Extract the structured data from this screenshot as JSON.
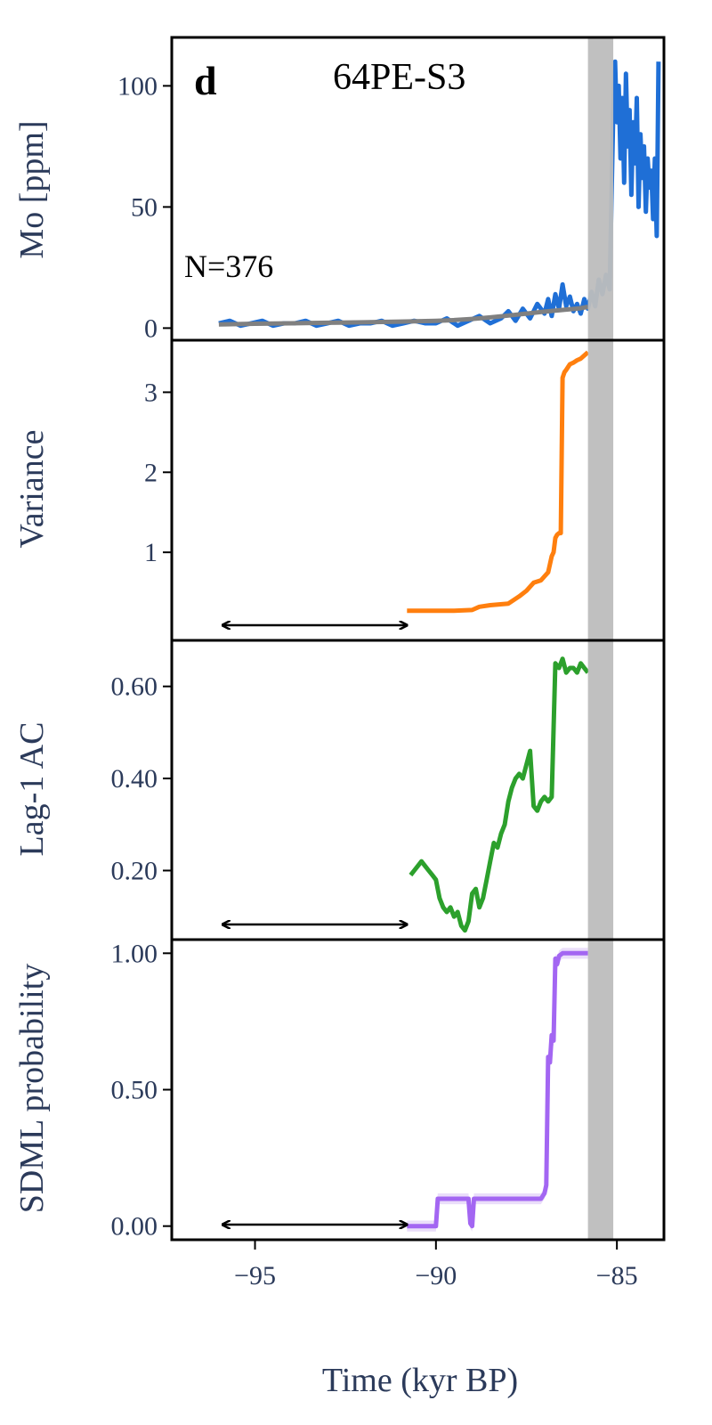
{
  "chart_data": {
    "type": "line",
    "panel_letter": "d",
    "title": "64PE-S3",
    "annotation": "N=376",
    "xlabel": "Time (kyr BP)",
    "xlim": [
      -97.3,
      -83.7
    ],
    "xticks": [
      -95,
      -90,
      -85
    ],
    "x_tick_labels": [
      "−95",
      "−90",
      "−85"
    ],
    "highlight_band": {
      "x_start": -85.8,
      "x_end": -85.1,
      "color": "#bdbdbd"
    },
    "window_arrow": {
      "x_start": -95.9,
      "x_end": -90.8
    },
    "panels": [
      {
        "ylabel": "Mo [ppm]",
        "ylim": [
          -5,
          120
        ],
        "yticks": [
          0,
          50,
          100
        ],
        "y_tick_labels": [
          "0",
          "50",
          "100"
        ],
        "series": [
          {
            "color": "#1f6fd6",
            "x": [
              -96.0,
              -95.7,
              -95.4,
              -95.1,
              -94.8,
              -94.5,
              -94.2,
              -93.9,
              -93.6,
              -93.3,
              -93.0,
              -92.7,
              -92.4,
              -92.1,
              -91.8,
              -91.5,
              -91.2,
              -90.9,
              -90.6,
              -90.3,
              -90.0,
              -89.7,
              -89.4,
              -89.1,
              -88.8,
              -88.5,
              -88.2,
              -88.0,
              -87.8,
              -87.6,
              -87.4,
              -87.2,
              -87.0,
              -86.9,
              -86.8,
              -86.7,
              -86.6,
              -86.5,
              -86.4,
              -86.3,
              -86.2,
              -86.1,
              -86.0,
              -85.9,
              -85.8,
              -85.7,
              -85.6,
              -85.5,
              -85.4,
              -85.3,
              -85.2,
              -85.1,
              -85.05,
              -85.0,
              -84.95,
              -84.9,
              -84.85,
              -84.8,
              -84.75,
              -84.7,
              -84.65,
              -84.6,
              -84.55,
              -84.5,
              -84.45,
              -84.4,
              -84.35,
              -84.3,
              -84.25,
              -84.2,
              -84.15,
              -84.1,
              -84.05,
              -84.0,
              -83.95,
              -83.9,
              -83.85
            ],
            "y": [
              2,
              3,
              1,
              2,
              3,
              1,
              2,
              2,
              3,
              1,
              2,
              3,
              1,
              2,
              2,
              3,
              1,
              2,
              3,
              2,
              2,
              4,
              1,
              3,
              5,
              2,
              4,
              7,
              3,
              8,
              4,
              10,
              6,
              12,
              5,
              14,
              8,
              18,
              9,
              13,
              7,
              10,
              6,
              12,
              8,
              15,
              9,
              20,
              14,
              22,
              16,
              90,
              110,
              85,
              100,
              70,
              95,
              60,
              105,
              75,
              90,
              55,
              85,
              68,
              95,
              50,
              80,
              62,
              75,
              48,
              70,
              58,
              65,
              45,
              70,
              38,
              110
            ]
          },
          {
            "color": "#808080",
            "x": [
              -96.0,
              -95.0,
              -94.0,
              -93.0,
              -92.0,
              -91.0,
              -90.0,
              -89.5,
              -89.0,
              -88.5,
              -88.0,
              -87.5,
              -87.0,
              -86.5,
              -86.0,
              -85.8
            ],
            "y": [
              1.5,
              1.8,
              2.0,
              2.2,
              2.4,
              2.7,
              3.0,
              3.3,
              3.8,
              4.4,
              5.2,
              6.0,
              6.8,
              7.5,
              8.2,
              8.8
            ]
          }
        ]
      },
      {
        "ylabel": "Variance",
        "ylim": [
          -0.1,
          3.65
        ],
        "yticks": [
          1,
          2,
          3
        ],
        "y_tick_labels": [
          "1",
          "2",
          "3"
        ],
        "series": [
          {
            "color": "#ff7f0e",
            "x": [
              -90.8,
              -90.0,
              -89.5,
              -89.0,
              -88.8,
              -88.5,
              -88.0,
              -87.7,
              -87.5,
              -87.3,
              -87.1,
              -87.0,
              -86.9,
              -86.85,
              -86.8,
              -86.75,
              -86.7,
              -86.65,
              -86.6,
              -86.55,
              -86.5,
              -86.45,
              -86.4,
              -86.3,
              -86.2,
              -86.1,
              -86.0,
              -85.9,
              -85.8
            ],
            "y": [
              0.27,
              0.27,
              0.27,
              0.28,
              0.32,
              0.34,
              0.36,
              0.45,
              0.52,
              0.62,
              0.65,
              0.7,
              0.75,
              0.85,
              0.95,
              1.0,
              1.18,
              1.22,
              1.24,
              1.24,
              3.18,
              3.25,
              3.28,
              3.35,
              3.37,
              3.4,
              3.42,
              3.46,
              3.5
            ]
          }
        ]
      },
      {
        "ylabel": "Lag-1 AC",
        "ylim": [
          0.05,
          0.7
        ],
        "yticks": [
          0.2,
          0.4,
          0.6
        ],
        "y_tick_labels": [
          "0.20",
          "0.40",
          "0.60"
        ],
        "series": [
          {
            "color": "#2ca02c",
            "x": [
              -90.7,
              -90.6,
              -90.5,
              -90.4,
              -90.3,
              -90.2,
              -90.1,
              -90.0,
              -89.9,
              -89.8,
              -89.7,
              -89.6,
              -89.5,
              -89.4,
              -89.3,
              -89.2,
              -89.1,
              -89.0,
              -88.9,
              -88.8,
              -88.7,
              -88.6,
              -88.5,
              -88.4,
              -88.3,
              -88.2,
              -88.1,
              -88.0,
              -87.9,
              -87.8,
              -87.7,
              -87.6,
              -87.5,
              -87.4,
              -87.3,
              -87.2,
              -87.1,
              -87.0,
              -86.9,
              -86.8,
              -86.7,
              -86.6,
              -86.5,
              -86.4,
              -86.3,
              -86.2,
              -86.1,
              -86.0,
              -85.9,
              -85.8
            ],
            "y": [
              0.19,
              0.2,
              0.21,
              0.22,
              0.21,
              0.2,
              0.19,
              0.18,
              0.14,
              0.12,
              0.11,
              0.12,
              0.1,
              0.11,
              0.08,
              0.07,
              0.09,
              0.15,
              0.16,
              0.12,
              0.14,
              0.18,
              0.22,
              0.26,
              0.25,
              0.28,
              0.3,
              0.35,
              0.38,
              0.4,
              0.41,
              0.4,
              0.43,
              0.46,
              0.34,
              0.33,
              0.35,
              0.36,
              0.35,
              0.36,
              0.65,
              0.64,
              0.66,
              0.63,
              0.64,
              0.64,
              0.63,
              0.65,
              0.64,
              0.63
            ]
          }
        ]
      },
      {
        "ylabel": "SDML probability",
        "ylim": [
          -0.05,
          1.05
        ],
        "yticks": [
          0.0,
          0.5,
          1.0
        ],
        "y_tick_labels": [
          "0.00",
          "0.50",
          "1.00"
        ],
        "series": [
          {
            "color": "#a366f2",
            "band_color": "#dcc8f7",
            "x": [
              -90.8,
              -90.0,
              -89.95,
              -89.5,
              -89.1,
              -89.05,
              -89.0,
              -88.95,
              -88.9,
              -88.0,
              -87.5,
              -87.1,
              -87.0,
              -86.95,
              -86.9,
              -86.85,
              -86.8,
              -86.75,
              -86.7,
              -86.65,
              -86.6,
              -86.5,
              -86.4,
              -86.2,
              -86.0,
              -85.8
            ],
            "y": [
              0.0,
              0.0,
              0.1,
              0.1,
              0.1,
              0.01,
              0.0,
              0.1,
              0.1,
              0.1,
              0.1,
              0.1,
              0.12,
              0.15,
              0.62,
              0.6,
              0.7,
              0.68,
              0.98,
              0.96,
              0.99,
              1.0,
              1.0,
              1.0,
              1.0,
              1.0
            ]
          }
        ]
      }
    ]
  }
}
